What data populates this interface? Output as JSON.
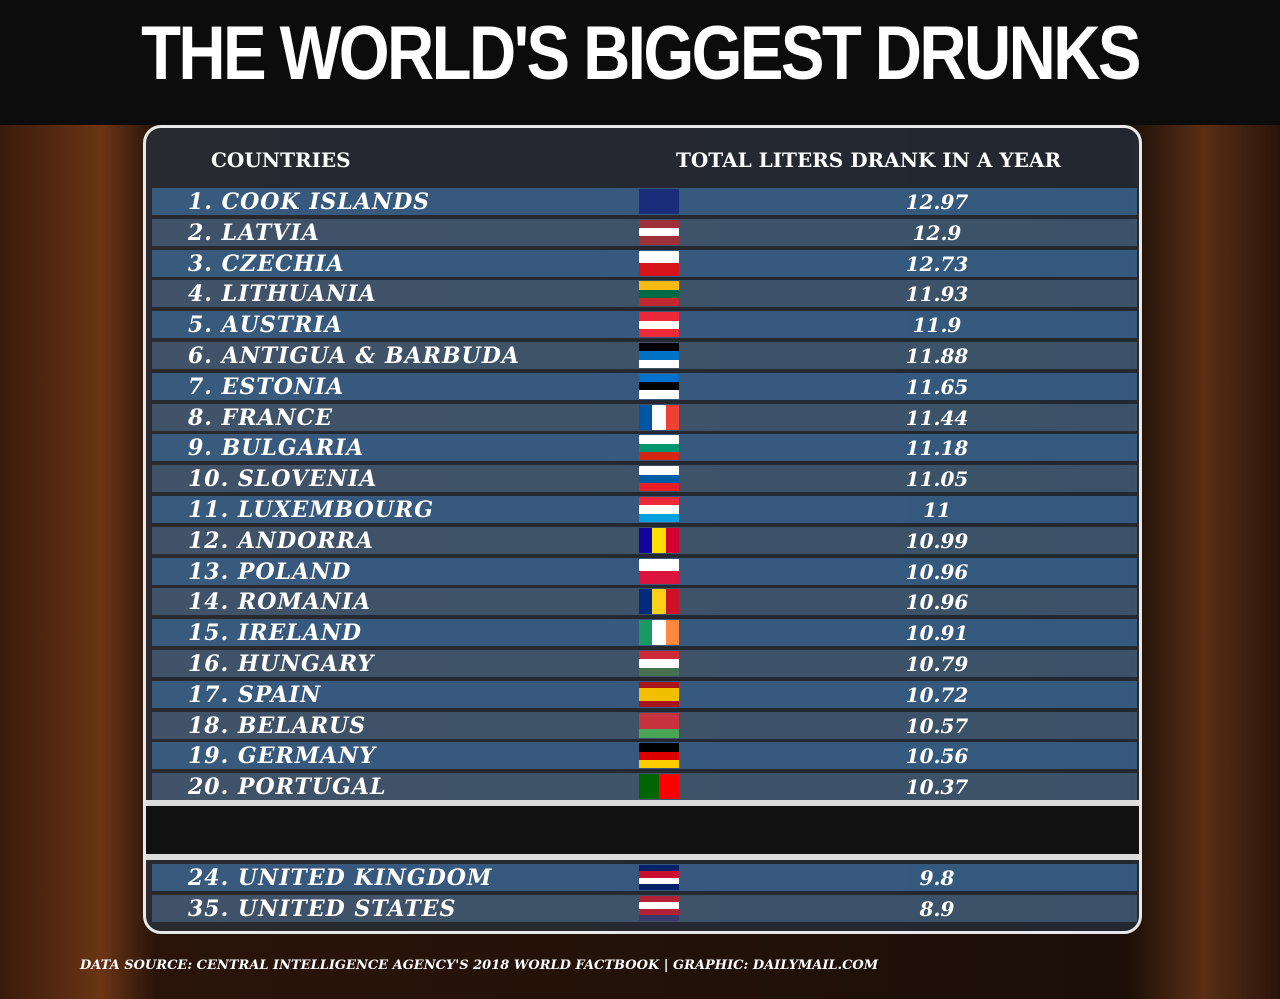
{
  "title": "THE WORLD'S BIGGEST DRUNKS",
  "table": {
    "headers": [
      "COUNTRIES",
      "TOTAL LITERS DRANK IN A YEAR"
    ],
    "rows": [
      [
        "1. COOK ISLANDS",
        12.97
      ],
      [
        "2. LATVIA",
        12.9
      ],
      [
        "3. CZECHIA",
        12.73
      ],
      [
        "4. LITHUANIA",
        11.93
      ],
      [
        "5. AUSTRIA",
        11.9
      ],
      [
        "6. ANTIGUA & BARBUDA",
        11.88
      ],
      [
        "7. ESTONIA",
        11.65
      ],
      [
        "8. FRANCE",
        11.44
      ],
      [
        "9. BULGARIA",
        11.18
      ],
      [
        "10. SLOVENIA",
        11.05
      ],
      [
        "11. LUXEMBOURG",
        11
      ],
      [
        "12. ANDORRA",
        10.99
      ],
      [
        "13. POLAND",
        10.96
      ],
      [
        "14. ROMANIA",
        10.96
      ],
      [
        "15. IRELAND",
        10.91
      ],
      [
        "16. HUNGARY",
        10.79
      ],
      [
        "17. SPAIN",
        10.72
      ],
      [
        "18. BELARUS",
        10.57
      ],
      [
        "19. GERMANY",
        10.56
      ],
      [
        "20. PORTUGAL",
        10.37
      ]
    ],
    "extra_rows": [
      [
        "24. UNITED KINGDOM",
        9.8
      ],
      [
        "35. UNITED STATES",
        8.9
      ]
    ]
  },
  "footer": "DATA SOURCE: CENTRAL INTELLIGENCE AGENCY'S 2018 WORLD FACTBOOK | GRAPHIC: DAILYMAIL.COM"
}
